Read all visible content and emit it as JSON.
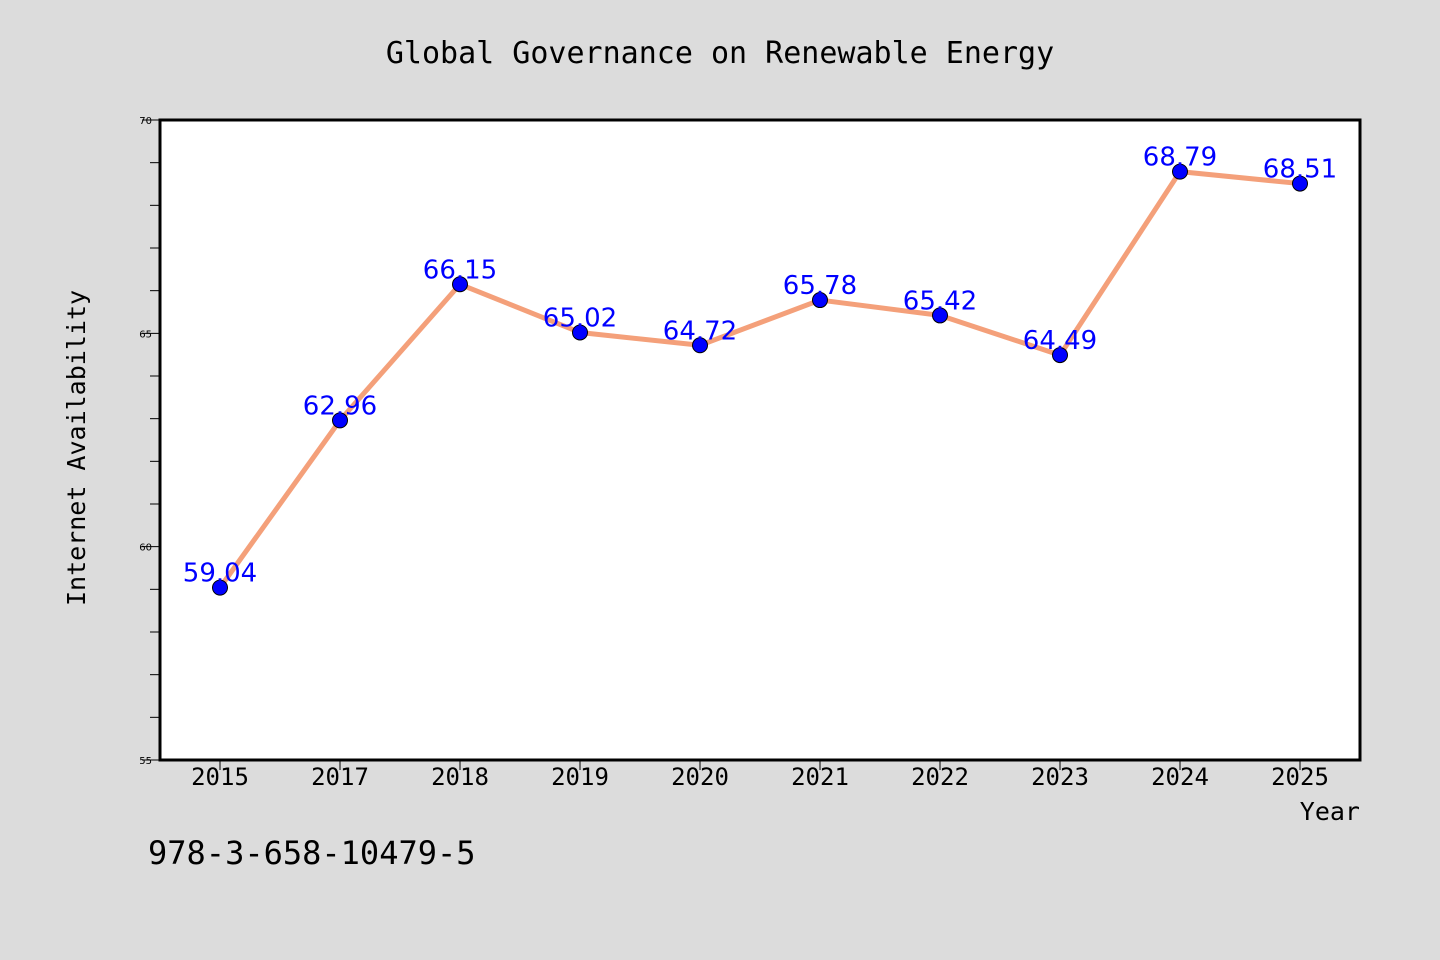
{
  "chart_data": {
    "type": "line",
    "title": "Global Governance on Renewable Energy",
    "xlabel": "Year",
    "ylabel": "Internet Availability",
    "categories": [
      "2015",
      "2017",
      "2018",
      "2019",
      "2020",
      "2021",
      "2022",
      "2023",
      "2024",
      "2025"
    ],
    "values": [
      59.04,
      62.96,
      66.15,
      65.02,
      64.72,
      65.78,
      65.42,
      64.49,
      68.79,
      68.51
    ],
    "data_labels": [
      "59.04",
      "62.96",
      "66.15",
      "65.02",
      "64.72",
      "65.78",
      "65.42",
      "64.49",
      "68.79",
      "68.51"
    ],
    "ylim": [
      55,
      70
    ],
    "yticks": [
      "55",
      "60",
      "65",
      "70"
    ],
    "grid": false,
    "legend": "none",
    "line_color": "#f4a07a",
    "marker_color": "#0000ff",
    "label_color": "#0000ff",
    "plot_background": "#ffffff",
    "figure_background": "#dcdcdc"
  },
  "footer": {
    "isbn": "978-3-658-10479-5"
  }
}
